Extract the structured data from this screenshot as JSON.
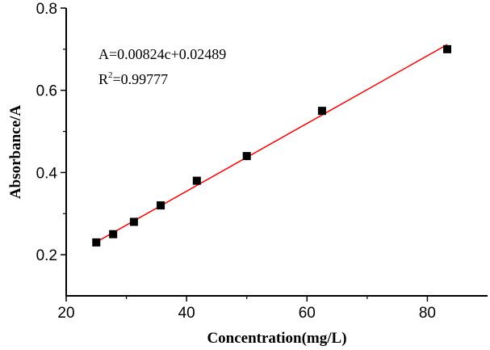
{
  "chart_data": {
    "type": "scatter",
    "title": "",
    "xlabel": "Concentration(mg/L)",
    "ylabel": "Absorbance/A",
    "xlim": [
      20,
      90
    ],
    "ylim": [
      0.1,
      0.8
    ],
    "xticks": [
      20,
      40,
      60,
      80
    ],
    "xtick_labels": [
      "20",
      "40",
      "60",
      "80"
    ],
    "xminor": [
      30,
      50,
      70
    ],
    "yticks": [
      0.2,
      0.4,
      0.6,
      0.8
    ],
    "ytick_labels": [
      "0.2",
      "0.4",
      "0.6",
      "0.8"
    ],
    "yminor": [
      0.3,
      0.5,
      0.7
    ],
    "grid": false,
    "series": [
      {
        "name": "data",
        "marker": "square",
        "color": "#000000",
        "x": [
          25,
          27.8,
          31.25,
          35.7,
          41.7,
          50,
          62.5,
          83.3
        ],
        "y": [
          0.23,
          0.25,
          0.28,
          0.32,
          0.38,
          0.44,
          0.55,
          0.7
        ]
      },
      {
        "name": "linear fit",
        "type": "line",
        "color": "#ff0000",
        "slope": 0.00824,
        "intercept": 0.02489,
        "x_range": [
          25,
          83.3
        ]
      }
    ],
    "annotations": {
      "equation": "A=0.00824c+0.02489",
      "r2_prefix": "R",
      "r2_sup": "2",
      "r2_value": "=0.99777"
    }
  }
}
